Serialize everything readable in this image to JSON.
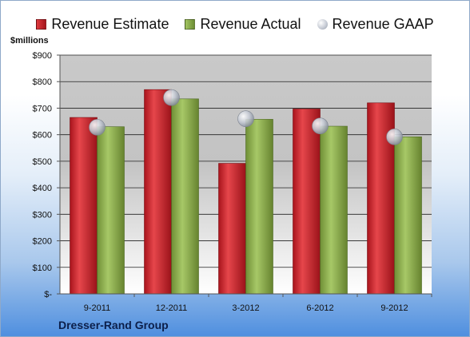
{
  "legend": {
    "estimate_label": "Revenue Estimate",
    "actual_label": "Revenue Actual",
    "gaap_label": "Revenue GAAP"
  },
  "unit_label": "$millions",
  "company_name": "Dresser-Rand Group",
  "colors": {
    "estimate": "#c8232b",
    "actual": "#8aae4a",
    "gaap": "#b8bec9"
  },
  "chart_data": {
    "type": "bar",
    "categories": [
      "9-2011",
      "12-2011",
      "3-2012",
      "6-2012",
      "9-2012"
    ],
    "series": [
      {
        "name": "Revenue Estimate",
        "type": "bar",
        "values": [
          665,
          770,
          492,
          697,
          720
        ]
      },
      {
        "name": "Revenue Actual",
        "type": "bar",
        "values": [
          630,
          735,
          658,
          632,
          592
        ]
      },
      {
        "name": "Revenue GAAP",
        "type": "scatter",
        "values": [
          628,
          740,
          660,
          633,
          592
        ]
      }
    ],
    "ylim": [
      0,
      900
    ],
    "yticks": [
      0,
      100,
      200,
      300,
      400,
      500,
      600,
      700,
      800,
      900
    ],
    "ytick_labels": [
      "$-",
      "$100",
      "$200",
      "$300",
      "$400",
      "$500",
      "$600",
      "$700",
      "$800",
      "$900"
    ],
    "ylabel": "$millions",
    "legend_position": "top",
    "grid": true
  }
}
